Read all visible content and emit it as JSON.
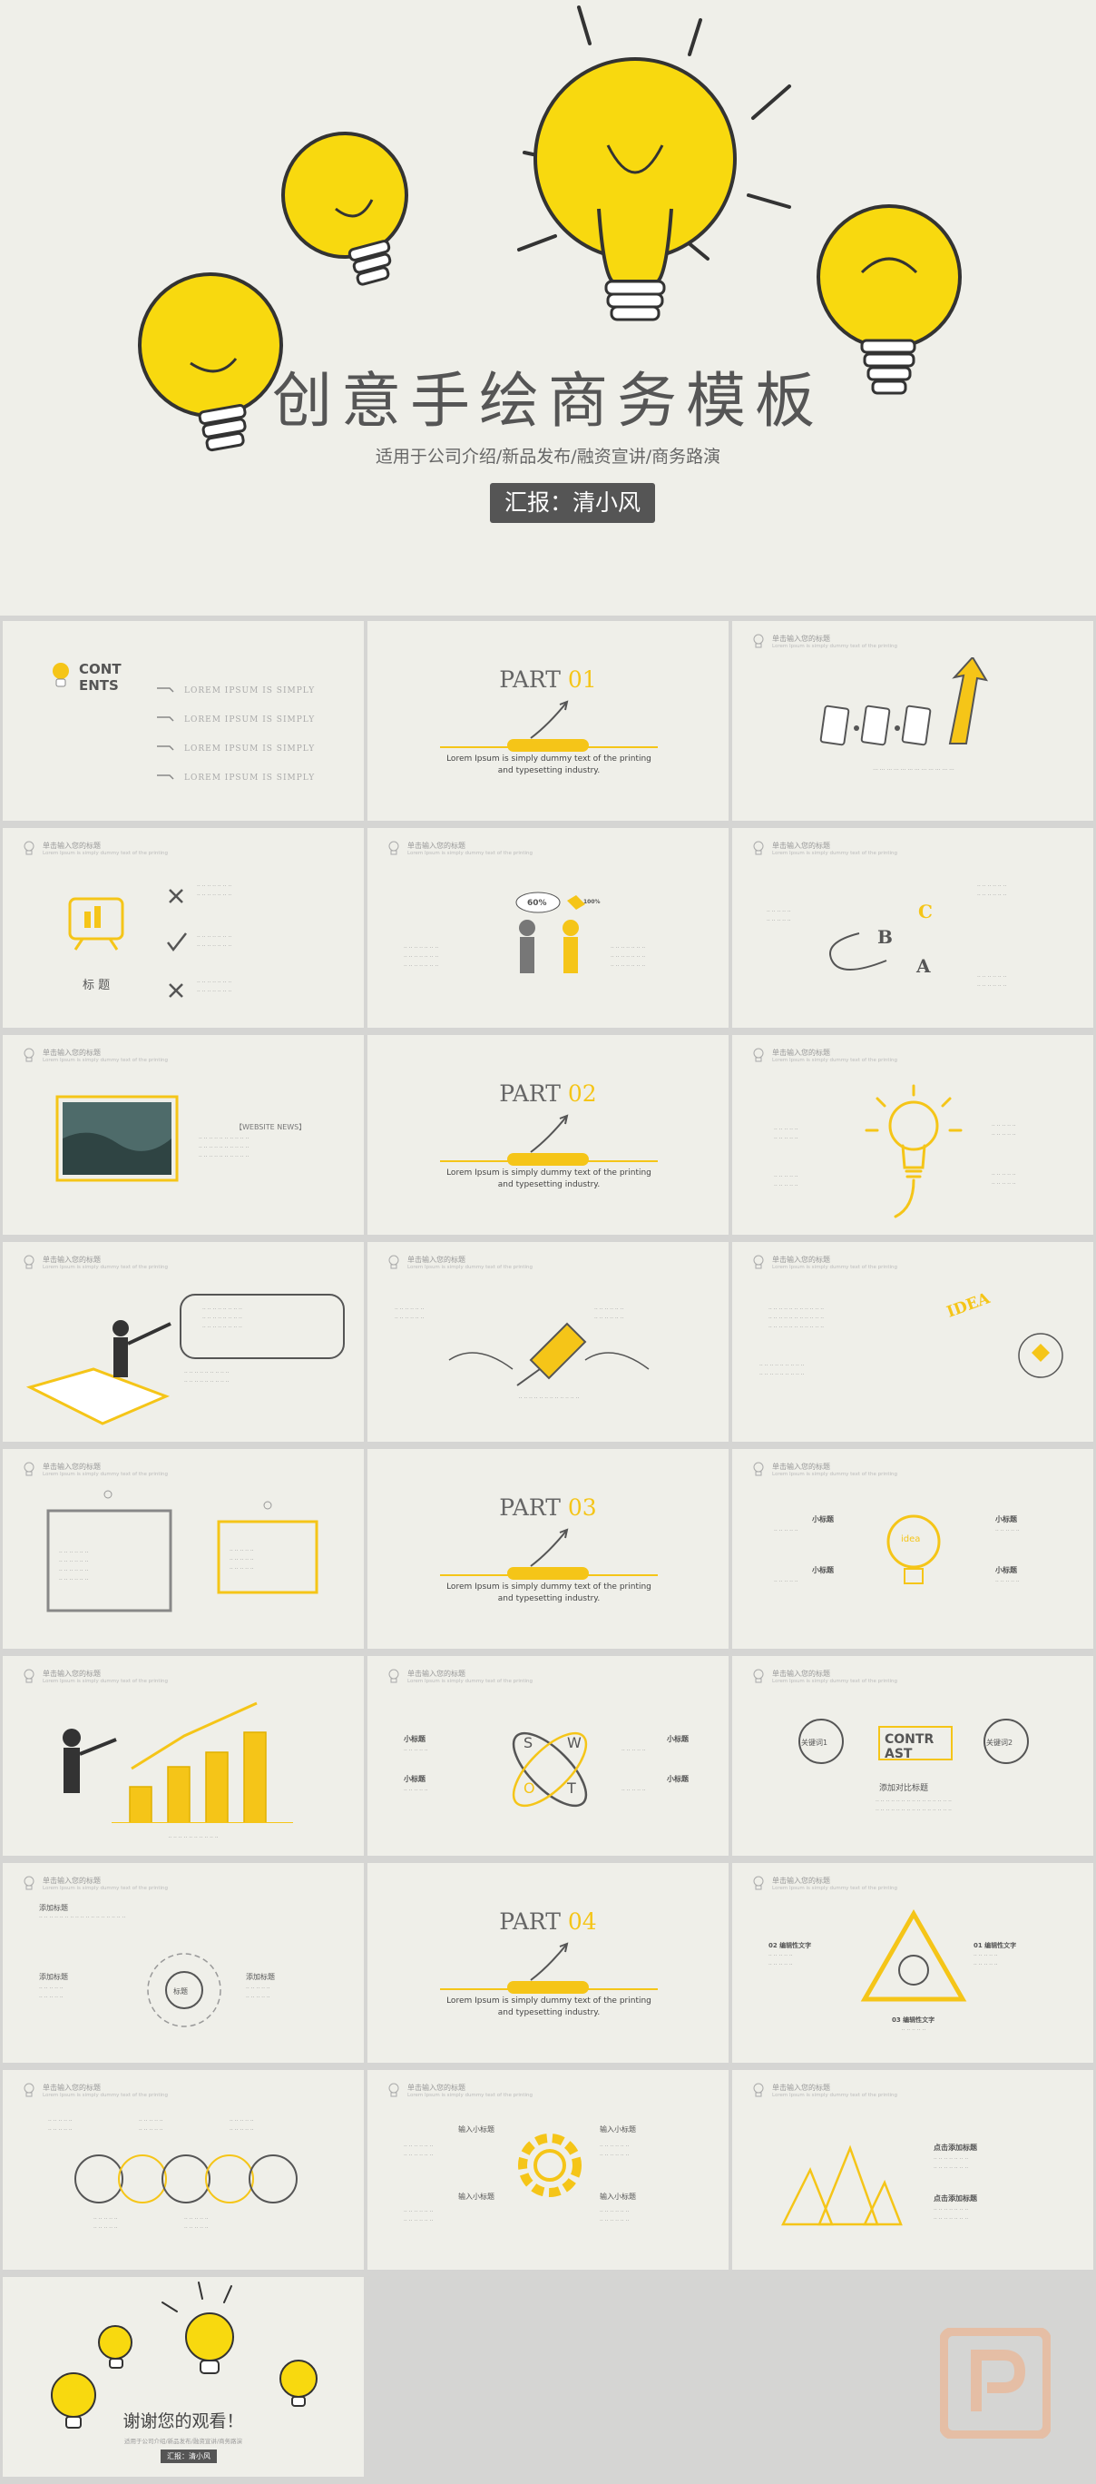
{
  "hero": {
    "title": "创意手绘商务模板",
    "subtitle": "适用于公司介绍/新品发布/融资宣讲/商务路演",
    "badge": "汇报：清小风"
  },
  "common": {
    "header_title": "单击输入您的标题",
    "header_sub": "Lorem Ipsum is simply dummy text of the printing"
  },
  "contents": {
    "title_line1": "CONT",
    "title_line2": "ENTS",
    "items": [
      "LOREM IPSUM IS SIMPLY",
      "LOREM IPSUM IS SIMPLY",
      "LOREM IPSUM IS SIMPLY",
      "LOREM IPSUM IS SIMPLY"
    ]
  },
  "parts": [
    {
      "label": "PART",
      "num": "01"
    },
    {
      "label": "PART",
      "num": "02"
    },
    {
      "label": "PART",
      "num": "03"
    },
    {
      "label": "PART",
      "num": "04"
    }
  ],
  "part_desc": "Lorem Ipsum is simply dummy text of the printing and typesetting industry.",
  "slide_texts": {
    "biaoti": "标 题",
    "percent": "60%",
    "percent2": "100%",
    "website": "【WEBSITE NEWS】",
    "b_letter": "B",
    "c_letter": "C",
    "a_letter": "A",
    "contrast_1": "CONTR",
    "contrast_2": "AST",
    "keyword1": "关键词1",
    "keyword2": "关键词2",
    "add_contrast": "添加对比标题",
    "add_title": "添加标题",
    "center_title": "标题",
    "small_title": "小标题",
    "input_small_title": "输入小标题",
    "point_title": "点击添加标题",
    "idea": "IDEA",
    "idea_bulb": "idea",
    "rel_02": "02 编辑性文字",
    "rel_01": "01 编辑性文字",
    "rel_03": "03 编辑性文字",
    "swot_s": "S",
    "swot_w": "W",
    "swot_o": "O",
    "swot_t": "T"
  },
  "ending": {
    "title": "谢谢您的观看！",
    "sub": "适用于公司介绍/新品发布/融资宣讲/商务路演",
    "badge": "汇报：清小风"
  },
  "colors": {
    "accent": "#f5c518",
    "slide_bg": "#efefe9",
    "page_bg": "#d5d5d3",
    "ink": "#555555"
  }
}
